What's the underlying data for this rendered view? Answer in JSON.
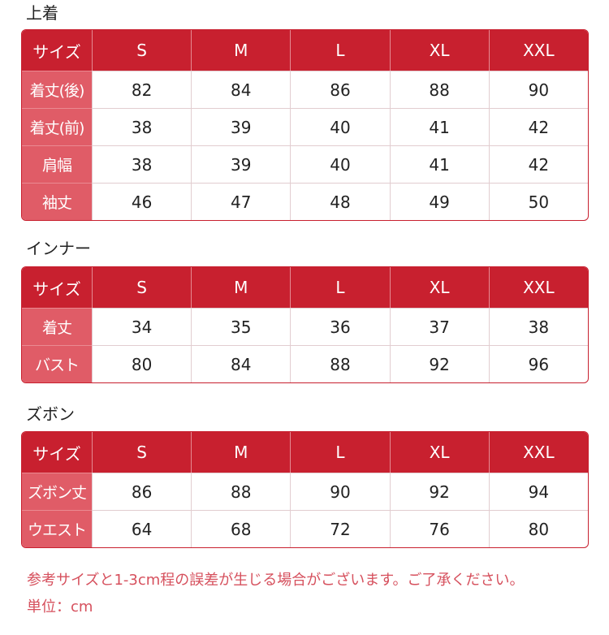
{
  "sections": [
    {
      "title": "上着",
      "header": [
        "サイズ",
        "S",
        "M",
        "L",
        "XL",
        "XXL"
      ],
      "rows": [
        [
          "着丈(後)",
          "82",
          "84",
          "86",
          "88",
          "90"
        ],
        [
          "着丈(前)",
          "38",
          "39",
          "40",
          "41",
          "42"
        ],
        [
          "肩幅",
          "38",
          "39",
          "40",
          "41",
          "42"
        ],
        [
          "袖丈",
          "46",
          "47",
          "48",
          "49",
          "50"
        ]
      ]
    },
    {
      "title": "インナー",
      "header": [
        "サイズ",
        "S",
        "M",
        "L",
        "XL",
        "XXL"
      ],
      "rows": [
        [
          "着丈",
          "34",
          "35",
          "36",
          "37",
          "38"
        ],
        [
          "バスト",
          "80",
          "84",
          "88",
          "92",
          "96"
        ]
      ]
    },
    {
      "title": "ズボン",
      "header": [
        "サイズ",
        "S",
        "M",
        "L",
        "XL",
        "XXL"
      ],
      "rows": [
        [
          "ズボン丈",
          "86",
          "88",
          "90",
          "92",
          "94"
        ],
        [
          "ウエスト",
          "64",
          "68",
          "72",
          "76",
          "80"
        ]
      ]
    }
  ],
  "notes": {
    "tolerance": "参考サイズと1-3cm程の誤差が生じる場合がございます。ご了承ください。",
    "unit": "単位：cm"
  },
  "colors": {
    "header": "#c8202f",
    "label": "#e05c67",
    "note": "#d6505d"
  }
}
